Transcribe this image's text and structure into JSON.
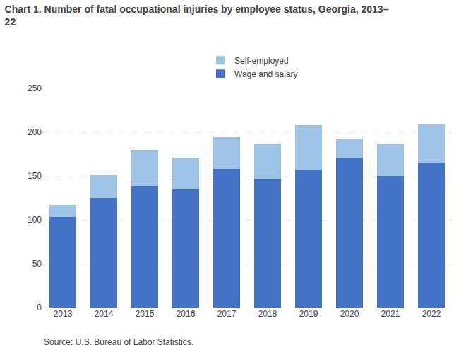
{
  "chart_data": {
    "type": "bar",
    "title": "Chart 1. Number of fatal occupational injuries by employee status, Georgia, 2013–\n22",
    "annotations": [
      "Source: U.S. Bureau of Labor Statistics."
    ],
    "categories": [
      "2013",
      "2014",
      "2015",
      "2016",
      "2017",
      "2018",
      "2019",
      "2020",
      "2021",
      "2022"
    ],
    "series": [
      {
        "name": "Wage and salary",
        "color": "#4472C4",
        "values": [
          103,
          125,
          139,
          135,
          158,
          147,
          157,
          170,
          150,
          165
        ]
      },
      {
        "name": "Self-employed",
        "color": "#9DC3E6",
        "values": [
          14,
          27,
          41,
          36,
          36,
          39,
          51,
          23,
          36,
          44
        ]
      }
    ],
    "stacked": true,
    "ylim": [
      0,
      250
    ],
    "yticks": [
      0,
      50,
      100,
      150,
      200,
      250
    ],
    "grid": true
  }
}
